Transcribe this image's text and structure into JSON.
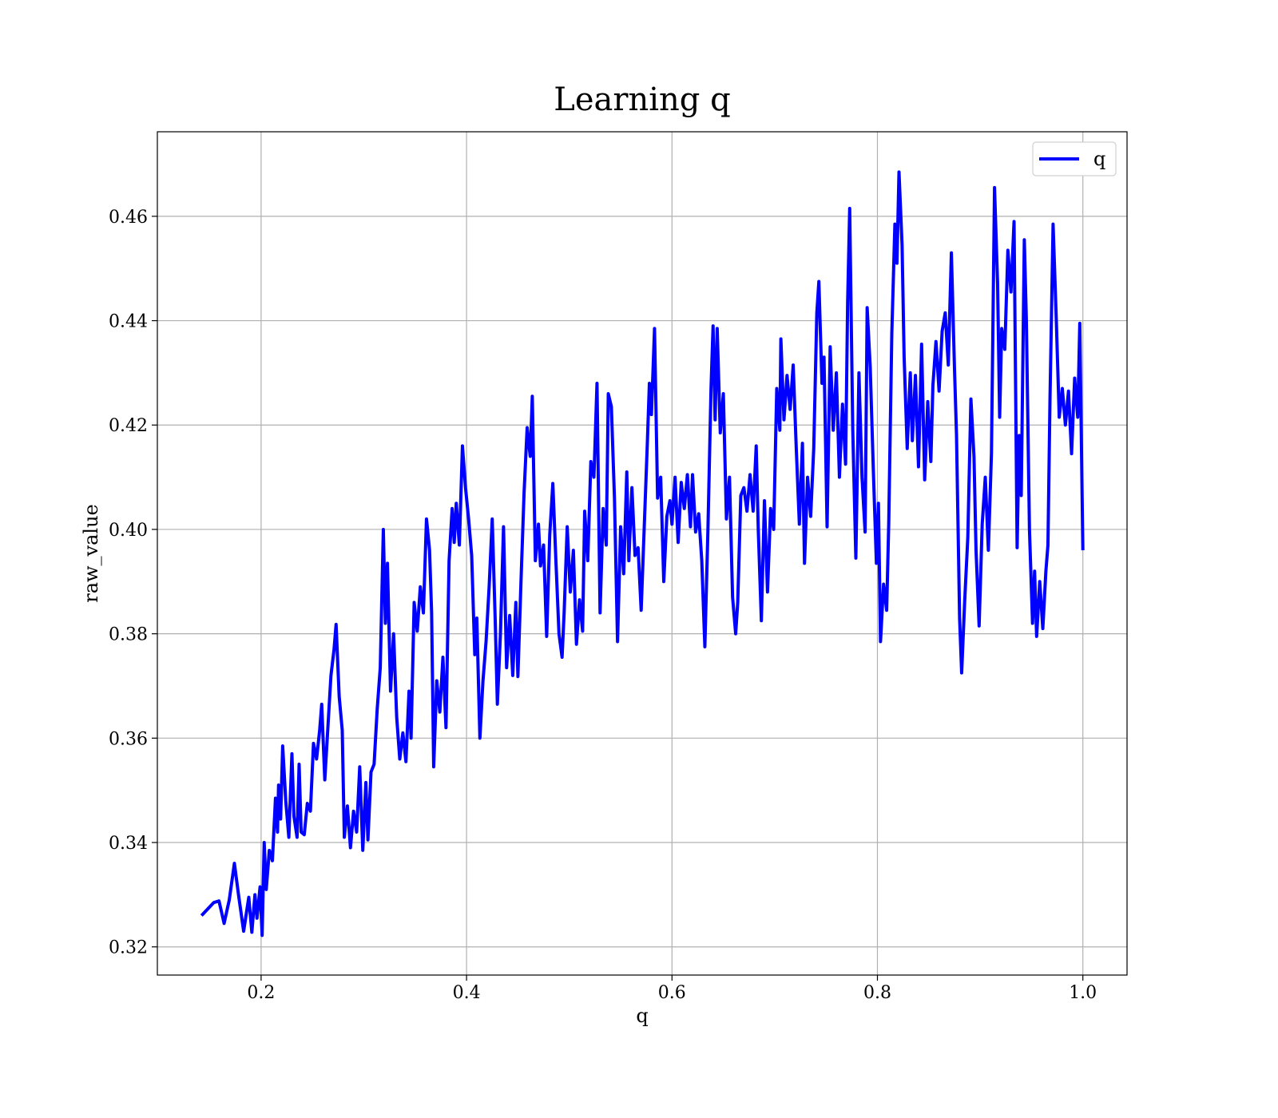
{
  "chart_data": {
    "type": "line",
    "title": "Learning q",
    "x_label": "q",
    "y_label": "raw_value",
    "x": [
      0.142,
      0.154,
      0.159,
      0.164,
      0.169,
      0.174,
      0.178,
      0.183,
      0.188,
      0.191,
      0.194,
      0.196,
      0.199,
      0.201,
      0.203,
      0.205,
      0.208,
      0.211,
      0.214,
      0.216,
      0.217,
      0.219,
      0.221,
      0.224,
      0.227,
      0.23,
      0.232,
      0.235,
      0.237,
      0.239,
      0.242,
      0.245,
      0.248,
      0.251,
      0.254,
      0.257,
      0.259,
      0.262,
      0.265,
      0.268,
      0.271,
      0.273,
      0.276,
      0.279,
      0.281,
      0.284,
      0.287,
      0.29,
      0.293,
      0.296,
      0.299,
      0.302,
      0.304,
      0.307,
      0.31,
      0.313,
      0.316,
      0.319,
      0.321,
      0.323,
      0.326,
      0.329,
      0.332,
      0.335,
      0.338,
      0.341,
      0.344,
      0.346,
      0.349,
      0.352,
      0.355,
      0.358,
      0.361,
      0.364,
      0.366,
      0.368,
      0.371,
      0.374,
      0.377,
      0.38,
      0.383,
      0.386,
      0.388,
      0.39,
      0.393,
      0.396,
      0.399,
      0.402,
      0.405,
      0.408,
      0.41,
      0.413,
      0.416,
      0.419,
      0.422,
      0.425,
      0.428,
      0.43,
      0.433,
      0.436,
      0.439,
      0.442,
      0.445,
      0.448,
      0.45,
      0.453,
      0.456,
      0.459,
      0.462,
      0.464,
      0.467,
      0.47,
      0.472,
      0.475,
      0.478,
      0.481,
      0.484,
      0.487,
      0.49,
      0.493,
      0.495,
      0.498,
      0.501,
      0.504,
      0.507,
      0.51,
      0.513,
      0.515,
      0.518,
      0.521,
      0.524,
      0.527,
      0.53,
      0.533,
      0.536,
      0.538,
      0.541,
      0.544,
      0.547,
      0.55,
      0.553,
      0.556,
      0.558,
      0.561,
      0.564,
      0.567,
      0.57,
      0.573,
      0.576,
      0.578,
      0.58,
      0.583,
      0.586,
      0.589,
      0.592,
      0.595,
      0.598,
      0.6,
      0.603,
      0.606,
      0.609,
      0.612,
      0.615,
      0.618,
      0.62,
      0.623,
      0.626,
      0.629,
      0.632,
      0.635,
      0.638,
      0.64,
      0.642,
      0.644,
      0.647,
      0.65,
      0.653,
      0.656,
      0.659,
      0.662,
      0.664,
      0.667,
      0.67,
      0.673,
      0.676,
      0.679,
      0.682,
      0.684,
      0.687,
      0.69,
      0.693,
      0.696,
      0.699,
      0.702,
      0.705,
      0.706,
      0.709,
      0.712,
      0.715,
      0.718,
      0.721,
      0.724,
      0.727,
      0.729,
      0.732,
      0.735,
      0.738,
      0.741,
      0.743,
      0.746,
      0.748,
      0.751,
      0.754,
      0.757,
      0.76,
      0.763,
      0.766,
      0.769,
      0.771,
      0.773,
      0.776,
      0.779,
      0.782,
      0.785,
      0.788,
      0.79,
      0.793,
      0.796,
      0.799,
      0.801,
      0.803,
      0.806,
      0.809,
      0.811,
      0.814,
      0.817,
      0.819,
      0.821,
      0.824,
      0.826,
      0.829,
      0.832,
      0.834,
      0.837,
      0.84,
      0.843,
      0.846,
      0.849,
      0.852,
      0.854,
      0.857,
      0.86,
      0.863,
      0.866,
      0.869,
      0.872,
      0.875,
      0.877,
      0.88,
      0.882,
      0.885,
      0.888,
      0.891,
      0.894,
      0.896,
      0.899,
      0.902,
      0.905,
      0.908,
      0.911,
      0.914,
      0.917,
      0.919,
      0.921,
      0.924,
      0.927,
      0.93,
      0.933,
      0.936,
      0.938,
      0.94,
      0.943,
      0.945,
      0.948,
      0.951,
      0.953,
      0.955,
      0.958,
      0.961,
      0.964,
      0.966,
      0.968,
      0.971,
      0.974,
      0.977,
      0.98,
      0.983,
      0.986,
      0.989,
      0.992,
      0.995,
      0.997,
      1.0
    ],
    "series": [
      {
        "name": "q",
        "color": "#0000ff",
        "values": [
          0.326,
          0.3285,
          0.3288,
          0.3245,
          0.329,
          0.336,
          0.33,
          0.323,
          0.3295,
          0.3228,
          0.33,
          0.3255,
          0.3315,
          0.3222,
          0.34,
          0.331,
          0.3385,
          0.3365,
          0.3485,
          0.342,
          0.351,
          0.3445,
          0.3585,
          0.348,
          0.341,
          0.357,
          0.345,
          0.341,
          0.355,
          0.342,
          0.3415,
          0.3475,
          0.346,
          0.359,
          0.356,
          0.3615,
          0.3665,
          0.352,
          0.362,
          0.372,
          0.377,
          0.3818,
          0.368,
          0.3615,
          0.341,
          0.347,
          0.339,
          0.346,
          0.342,
          0.3545,
          0.3385,
          0.3515,
          0.3405,
          0.3535,
          0.355,
          0.3655,
          0.3735,
          0.4,
          0.382,
          0.3935,
          0.369,
          0.38,
          0.364,
          0.356,
          0.361,
          0.3555,
          0.369,
          0.36,
          0.386,
          0.3805,
          0.389,
          0.384,
          0.402,
          0.396,
          0.384,
          0.3545,
          0.371,
          0.365,
          0.3755,
          0.362,
          0.394,
          0.404,
          0.3975,
          0.405,
          0.397,
          0.416,
          0.408,
          0.402,
          0.395,
          0.376,
          0.383,
          0.36,
          0.371,
          0.3785,
          0.389,
          0.402,
          0.382,
          0.3665,
          0.38,
          0.4005,
          0.3735,
          0.3835,
          0.372,
          0.386,
          0.3718,
          0.39,
          0.407,
          0.4195,
          0.414,
          0.4255,
          0.394,
          0.401,
          0.393,
          0.397,
          0.3795,
          0.399,
          0.4088,
          0.394,
          0.38,
          0.3755,
          0.384,
          0.4005,
          0.388,
          0.396,
          0.378,
          0.3865,
          0.3805,
          0.4035,
          0.394,
          0.413,
          0.41,
          0.428,
          0.384,
          0.404,
          0.397,
          0.426,
          0.4235,
          0.406,
          0.3785,
          0.4005,
          0.3915,
          0.411,
          0.394,
          0.408,
          0.395,
          0.3965,
          0.3845,
          0.4005,
          0.4165,
          0.428,
          0.422,
          0.4385,
          0.406,
          0.41,
          0.39,
          0.4025,
          0.4055,
          0.401,
          0.41,
          0.3975,
          0.409,
          0.404,
          0.4105,
          0.4005,
          0.4105,
          0.3995,
          0.403,
          0.394,
          0.3775,
          0.4,
          0.427,
          0.439,
          0.421,
          0.4385,
          0.4185,
          0.426,
          0.402,
          0.41,
          0.387,
          0.38,
          0.386,
          0.4065,
          0.408,
          0.4035,
          0.4105,
          0.4035,
          0.416,
          0.4,
          0.3825,
          0.4055,
          0.388,
          0.404,
          0.4,
          0.427,
          0.419,
          0.4365,
          0.421,
          0.4295,
          0.423,
          0.4315,
          0.4155,
          0.401,
          0.4165,
          0.3935,
          0.41,
          0.4025,
          0.4155,
          0.4415,
          0.4475,
          0.428,
          0.433,
          0.4005,
          0.435,
          0.419,
          0.43,
          0.41,
          0.424,
          0.4125,
          0.4435,
          0.4615,
          0.419,
          0.3945,
          0.43,
          0.41,
          0.3995,
          0.4425,
          0.431,
          0.4115,
          0.3935,
          0.405,
          0.3785,
          0.3895,
          0.3845,
          0.401,
          0.4375,
          0.4585,
          0.451,
          0.4685,
          0.4545,
          0.433,
          0.4155,
          0.43,
          0.417,
          0.4295,
          0.412,
          0.4355,
          0.4095,
          0.4245,
          0.413,
          0.4275,
          0.436,
          0.4265,
          0.438,
          0.4415,
          0.4315,
          0.453,
          0.431,
          0.418,
          0.383,
          0.3725,
          0.3865,
          0.3985,
          0.425,
          0.414,
          0.396,
          0.3815,
          0.401,
          0.41,
          0.396,
          0.4145,
          0.4655,
          0.447,
          0.4215,
          0.4385,
          0.4345,
          0.4535,
          0.4455,
          0.459,
          0.3965,
          0.418,
          0.4065,
          0.4555,
          0.44,
          0.4,
          0.382,
          0.392,
          0.3795,
          0.39,
          0.381,
          0.392,
          0.397,
          0.425,
          0.4585,
          0.441,
          0.4215,
          0.427,
          0.42,
          0.4265,
          0.4145,
          0.429,
          0.4215,
          0.4395,
          0.396
        ]
      }
    ],
    "xlim": [
      0.099,
      1.043
    ],
    "ylim": [
      0.3146,
      0.4762
    ],
    "xticks": [
      0.2,
      0.4,
      0.6,
      0.8,
      {
        "value": 1,
        "label": "1.0"
      }
    ],
    "yticks": [
      0.32,
      0.34,
      0.36,
      0.38,
      {
        "value": 0.4,
        "label": "0.40"
      },
      0.42,
      0.44,
      0.46
    ],
    "grid": true,
    "legend": "upper right"
  }
}
